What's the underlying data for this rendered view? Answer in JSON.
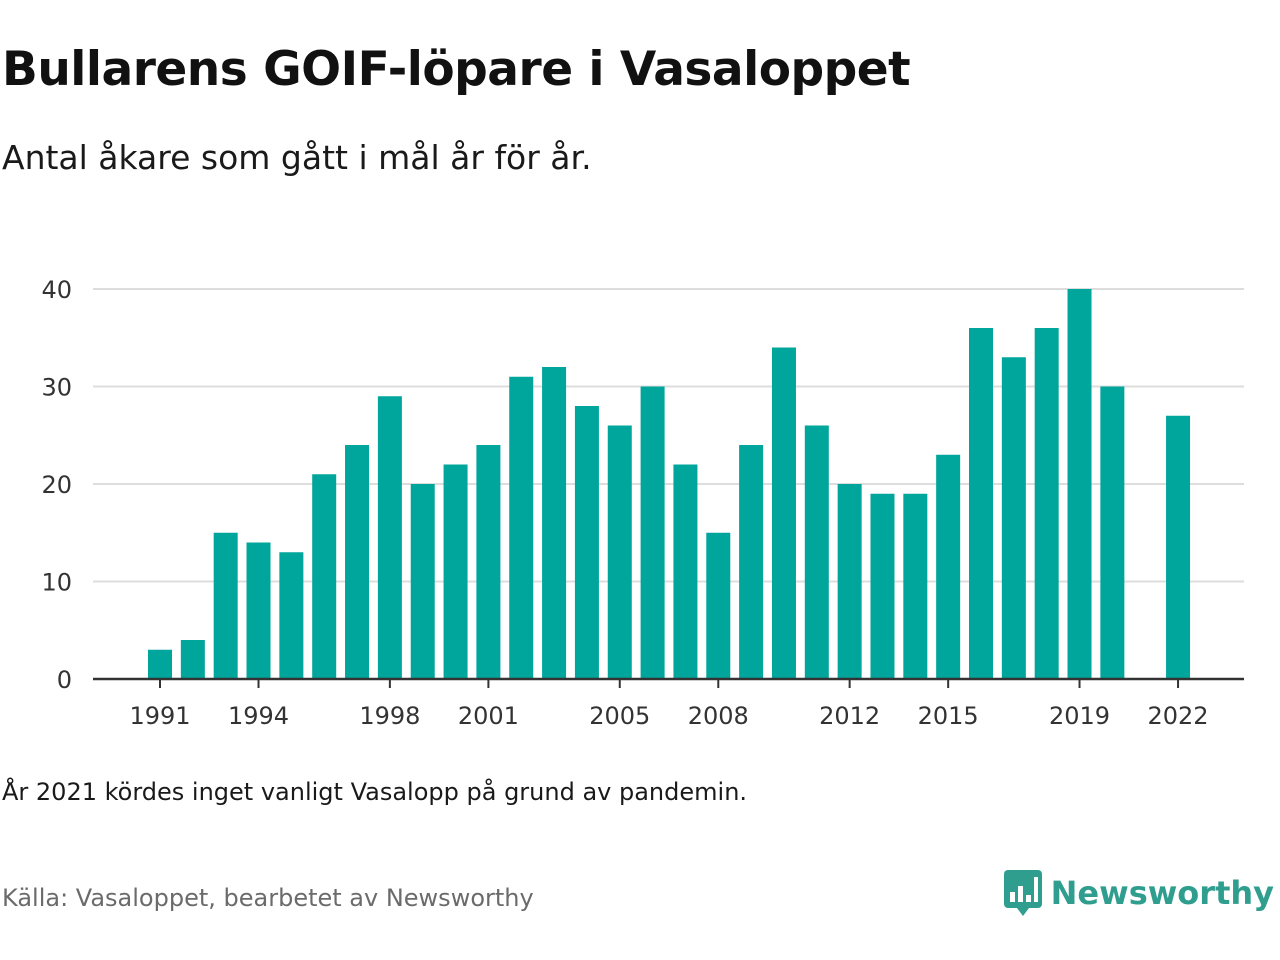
{
  "header": {
    "title": "Bullarens GOIF-löpare i Vasaloppet",
    "subtitle": "Antal åkare som gått i mål år för år."
  },
  "footer": {
    "note": "År 2021 kördes inget vanligt Vasalopp på grund av pandemin.",
    "source": "Källa: Vasaloppet, bearbetet av Newsworthy",
    "brand_name": "Newsworthy",
    "brand_icon": "newsworthy-logo-icon"
  },
  "colors": {
    "bar": "#00a59b",
    "grid": "#dddddd",
    "axis": "#333333",
    "brand": "#2f9e8f"
  },
  "chart_data": {
    "type": "bar",
    "title": "Bullarens GOIF-löpare i Vasaloppet",
    "subtitle": "Antal åkare som gått i mål år för år.",
    "xlabel": "",
    "ylabel": "",
    "ylim": [
      0,
      40
    ],
    "yticks": [
      0,
      10,
      20,
      30,
      40
    ],
    "xticks": [
      1991,
      1994,
      1998,
      2001,
      2005,
      2008,
      2012,
      2015,
      2019,
      2022
    ],
    "grid": true,
    "legend": "none",
    "categories": [
      1991,
      1992,
      1993,
      1994,
      1995,
      1996,
      1997,
      1998,
      1999,
      2000,
      2001,
      2002,
      2003,
      2004,
      2005,
      2006,
      2007,
      2008,
      2009,
      2010,
      2011,
      2012,
      2013,
      2014,
      2015,
      2016,
      2017,
      2018,
      2019,
      2020,
      2021,
      2022
    ],
    "values": [
      3,
      4,
      15,
      14,
      13,
      21,
      24,
      29,
      20,
      22,
      24,
      31,
      32,
      28,
      26,
      30,
      22,
      15,
      24,
      34,
      26,
      20,
      19,
      19,
      23,
      36,
      33,
      36,
      40,
      30,
      null,
      27
    ]
  }
}
